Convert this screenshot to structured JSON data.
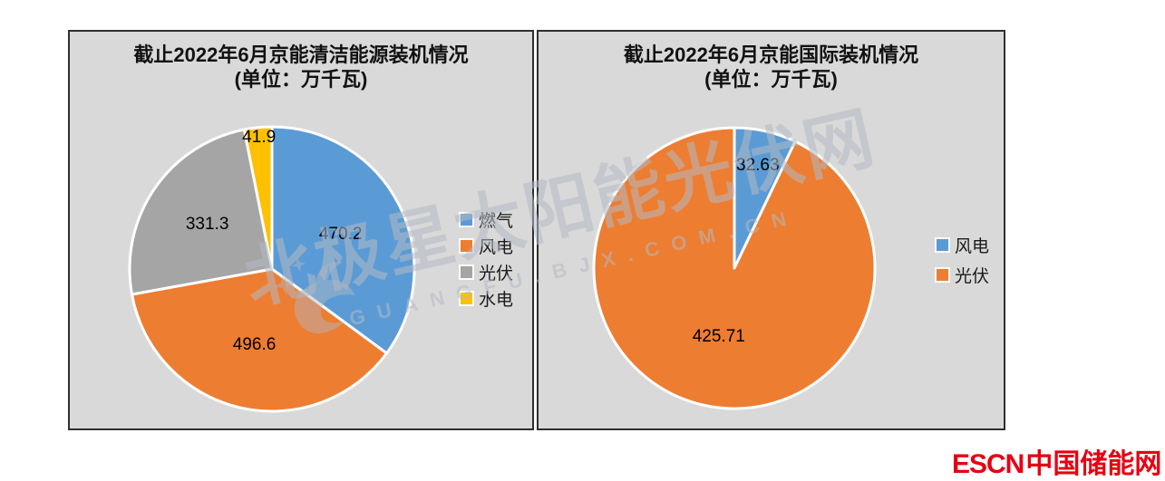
{
  "watermark": {
    "text": "北极星太阳能光伏网",
    "subtext": "GUANGFU.BJX.COM.CN",
    "color": "#b4bac4"
  },
  "footer": {
    "brand_en": "ESCN",
    "brand_cn": "中国储能网",
    "color": "#e60012"
  },
  "chart_data": [
    {
      "type": "pie",
      "title": "截止2022年6月京能清洁能源装机情况",
      "subtitle": "(单位：万千瓦)",
      "unit": "万千瓦",
      "categories": [
        "燃气",
        "风电",
        "光伏",
        "水电"
      ],
      "values": [
        470.2,
        496.6,
        331.3,
        41.9
      ],
      "colors": [
        "#5b9bd5",
        "#ed7d31",
        "#a5a5a5",
        "#ffc000"
      ],
      "legend_position": "right",
      "start_angle": 0,
      "label_radius": [
        0.54,
        0.55,
        0.55,
        0.93
      ]
    },
    {
      "type": "pie",
      "title": "截止2022年6月京能国际装机情况",
      "subtitle": "(单位：万千瓦)",
      "unit": "万千瓦",
      "categories": [
        "风电",
        "光伏"
      ],
      "values": [
        32.63,
        425.71
      ],
      "colors": [
        "#5b9bd5",
        "#ed7d31"
      ],
      "legend_position": "right",
      "start_angle": 0,
      "label_radius": [
        0.75,
        0.5
      ]
    }
  ]
}
